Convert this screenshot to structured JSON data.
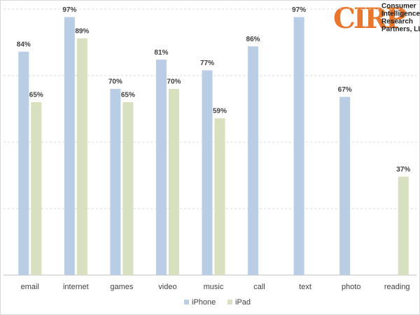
{
  "chart_data": {
    "type": "bar",
    "categories": [
      "email",
      "internet",
      "games",
      "video",
      "music",
      "call",
      "text",
      "photo",
      "reading"
    ],
    "series": [
      {
        "name": "iPhone",
        "color": "#b9cde5",
        "values": [
          84,
          97,
          70,
          81,
          77,
          86,
          97,
          67,
          null
        ],
        "value_labels": [
          "84%",
          "97%",
          "70%",
          "81%",
          "77%",
          "86%",
          "97%",
          "67%",
          null
        ]
      },
      {
        "name": "iPad",
        "color": "#d7e0bf",
        "values": [
          65,
          89,
          65,
          70,
          59,
          null,
          null,
          null,
          37
        ],
        "value_labels": [
          "65%",
          "89%",
          "65%",
          "70%",
          "59%",
          null,
          null,
          null,
          "37%"
        ]
      }
    ],
    "ylim": [
      0,
      100
    ],
    "yticks": [
      0,
      25,
      50,
      75,
      100
    ],
    "grid": true,
    "legend": "bottom"
  },
  "logo": {
    "mark": "CIRP",
    "lines": [
      "Consumer",
      "Intelligence",
      "Research",
      "Partners, LLC"
    ]
  }
}
